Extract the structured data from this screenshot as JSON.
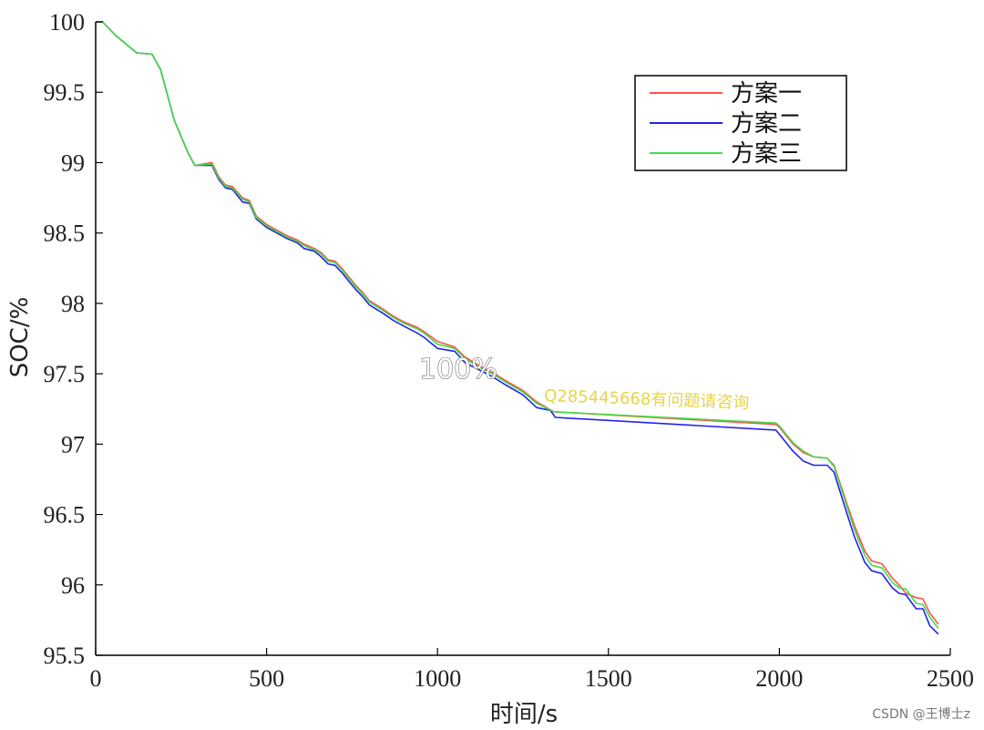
{
  "chart_data": {
    "type": "line",
    "title": "",
    "xlabel": "时间/s",
    "ylabel": "SOC/%",
    "xlim": [
      0,
      2500
    ],
    "ylim": [
      95.5,
      100
    ],
    "xticks": [
      "0",
      "500",
      "1000",
      "1500",
      "2000",
      "2500"
    ],
    "yticks": [
      "95.5",
      "96",
      "96.5",
      "97",
      "97.5",
      "98",
      "98.5",
      "99",
      "99.5",
      "100"
    ],
    "grid": false,
    "legend_position": "top-right",
    "series": [
      {
        "name": "方案一",
        "color": "#ff5050",
        "points": [
          [
            0,
            100
          ],
          [
            20,
            100
          ],
          [
            60,
            99.9
          ],
          [
            120,
            99.78
          ],
          [
            165,
            99.77
          ],
          [
            190,
            99.66
          ],
          [
            230,
            99.3
          ],
          [
            270,
            99.07
          ],
          [
            290,
            98.98
          ],
          [
            340,
            99.0
          ],
          [
            360,
            98.9
          ],
          [
            380,
            98.84
          ],
          [
            400,
            98.83
          ],
          [
            430,
            98.75
          ],
          [
            450,
            98.73
          ],
          [
            470,
            98.62
          ],
          [
            500,
            98.56
          ],
          [
            530,
            98.52
          ],
          [
            560,
            98.48
          ],
          [
            590,
            98.45
          ],
          [
            610,
            98.42
          ],
          [
            640,
            98.39
          ],
          [
            660,
            98.36
          ],
          [
            680,
            98.31
          ],
          [
            700,
            98.3
          ],
          [
            720,
            98.25
          ],
          [
            740,
            98.19
          ],
          [
            760,
            98.13
          ],
          [
            780,
            98.08
          ],
          [
            800,
            98.02
          ],
          [
            840,
            97.96
          ],
          [
            870,
            97.91
          ],
          [
            900,
            97.87
          ],
          [
            940,
            97.83
          ],
          [
            960,
            97.8
          ],
          [
            1000,
            97.73
          ],
          [
            1050,
            97.69
          ],
          [
            1080,
            97.62
          ],
          [
            1120,
            97.56
          ],
          [
            1160,
            97.51
          ],
          [
            1200,
            97.45
          ],
          [
            1250,
            97.38
          ],
          [
            1290,
            97.3
          ],
          [
            1340,
            97.23
          ],
          [
            1990,
            97.14
          ],
          [
            2000,
            97.12
          ],
          [
            2040,
            97.0
          ],
          [
            2070,
            96.94
          ],
          [
            2100,
            96.91
          ],
          [
            2140,
            96.9
          ],
          [
            2160,
            96.85
          ],
          [
            2200,
            96.56
          ],
          [
            2220,
            96.42
          ],
          [
            2250,
            96.24
          ],
          [
            2270,
            96.17
          ],
          [
            2300,
            96.15
          ],
          [
            2330,
            96.05
          ],
          [
            2350,
            96.0
          ],
          [
            2370,
            95.94
          ],
          [
            2400,
            95.91
          ],
          [
            2420,
            95.9
          ],
          [
            2440,
            95.8
          ],
          [
            2465,
            95.72
          ]
        ]
      },
      {
        "name": "方案二",
        "color": "#2222ee",
        "points": [
          [
            0,
            100
          ],
          [
            20,
            100
          ],
          [
            60,
            99.9
          ],
          [
            120,
            99.78
          ],
          [
            165,
            99.77
          ],
          [
            190,
            99.66
          ],
          [
            230,
            99.3
          ],
          [
            270,
            99.07
          ],
          [
            290,
            98.98
          ],
          [
            340,
            98.98
          ],
          [
            360,
            98.88
          ],
          [
            380,
            98.82
          ],
          [
            400,
            98.81
          ],
          [
            430,
            98.72
          ],
          [
            450,
            98.71
          ],
          [
            470,
            98.6
          ],
          [
            500,
            98.54
          ],
          [
            530,
            98.5
          ],
          [
            560,
            98.46
          ],
          [
            590,
            98.43
          ],
          [
            610,
            98.39
          ],
          [
            640,
            98.37
          ],
          [
            660,
            98.33
          ],
          [
            680,
            98.28
          ],
          [
            700,
            98.27
          ],
          [
            720,
            98.22
          ],
          [
            740,
            98.16
          ],
          [
            760,
            98.1
          ],
          [
            780,
            98.05
          ],
          [
            800,
            97.99
          ],
          [
            840,
            97.93
          ],
          [
            870,
            97.88
          ],
          [
            900,
            97.84
          ],
          [
            940,
            97.79
          ],
          [
            960,
            97.76
          ],
          [
            1000,
            97.68
          ],
          [
            1050,
            97.66
          ],
          [
            1080,
            97.58
          ],
          [
            1120,
            97.53
          ],
          [
            1160,
            97.48
          ],
          [
            1200,
            97.42
          ],
          [
            1250,
            97.35
          ],
          [
            1290,
            97.26
          ],
          [
            1330,
            97.24
          ],
          [
            1345,
            97.19
          ],
          [
            1990,
            97.1
          ],
          [
            2000,
            97.07
          ],
          [
            2040,
            96.95
          ],
          [
            2070,
            96.88
          ],
          [
            2100,
            96.85
          ],
          [
            2140,
            96.85
          ],
          [
            2160,
            96.8
          ],
          [
            2200,
            96.49
          ],
          [
            2220,
            96.34
          ],
          [
            2250,
            96.16
          ],
          [
            2270,
            96.1
          ],
          [
            2300,
            96.08
          ],
          [
            2330,
            95.98
          ],
          [
            2350,
            95.94
          ],
          [
            2370,
            95.93
          ],
          [
            2400,
            95.83
          ],
          [
            2420,
            95.83
          ],
          [
            2440,
            95.71
          ],
          [
            2465,
            95.65
          ]
        ]
      },
      {
        "name": "方案三",
        "color": "#44dd44",
        "points": [
          [
            0,
            100
          ],
          [
            20,
            100
          ],
          [
            60,
            99.9
          ],
          [
            120,
            99.78
          ],
          [
            165,
            99.77
          ],
          [
            190,
            99.66
          ],
          [
            230,
            99.3
          ],
          [
            270,
            99.07
          ],
          [
            290,
            98.98
          ],
          [
            340,
            98.99
          ],
          [
            360,
            98.89
          ],
          [
            380,
            98.83
          ],
          [
            400,
            98.82
          ],
          [
            430,
            98.74
          ],
          [
            450,
            98.72
          ],
          [
            470,
            98.61
          ],
          [
            500,
            98.55
          ],
          [
            530,
            98.51
          ],
          [
            560,
            98.47
          ],
          [
            590,
            98.44
          ],
          [
            610,
            98.41
          ],
          [
            640,
            98.38
          ],
          [
            660,
            98.35
          ],
          [
            680,
            98.3
          ],
          [
            700,
            98.29
          ],
          [
            720,
            98.24
          ],
          [
            740,
            98.18
          ],
          [
            760,
            98.12
          ],
          [
            780,
            98.07
          ],
          [
            800,
            98.01
          ],
          [
            840,
            97.95
          ],
          [
            870,
            97.9
          ],
          [
            900,
            97.86
          ],
          [
            940,
            97.82
          ],
          [
            960,
            97.79
          ],
          [
            1000,
            97.71
          ],
          [
            1050,
            97.68
          ],
          [
            1080,
            97.61
          ],
          [
            1120,
            97.55
          ],
          [
            1160,
            97.5
          ],
          [
            1200,
            97.44
          ],
          [
            1250,
            97.37
          ],
          [
            1290,
            97.29
          ],
          [
            1340,
            97.23
          ],
          [
            1990,
            97.15
          ],
          [
            2000,
            97.13
          ],
          [
            2040,
            97.01
          ],
          [
            2070,
            96.95
          ],
          [
            2100,
            96.91
          ],
          [
            2140,
            96.9
          ],
          [
            2160,
            96.84
          ],
          [
            2200,
            96.54
          ],
          [
            2220,
            96.39
          ],
          [
            2250,
            96.21
          ],
          [
            2270,
            96.14
          ],
          [
            2300,
            96.12
          ],
          [
            2330,
            96.02
          ],
          [
            2350,
            95.98
          ],
          [
            2370,
            95.97
          ],
          [
            2400,
            95.87
          ],
          [
            2420,
            95.86
          ],
          [
            2440,
            95.77
          ],
          [
            2465,
            95.69
          ]
        ]
      }
    ],
    "annotations": [
      "100%",
      "Q285445668有问题请咨询"
    ]
  },
  "watermark": {
    "text": "CSDN @王博士z",
    "overlay_color": "#e6d44a"
  },
  "colors": {
    "axis": "#000000",
    "text": "#222222",
    "background": "#ffffff"
  }
}
